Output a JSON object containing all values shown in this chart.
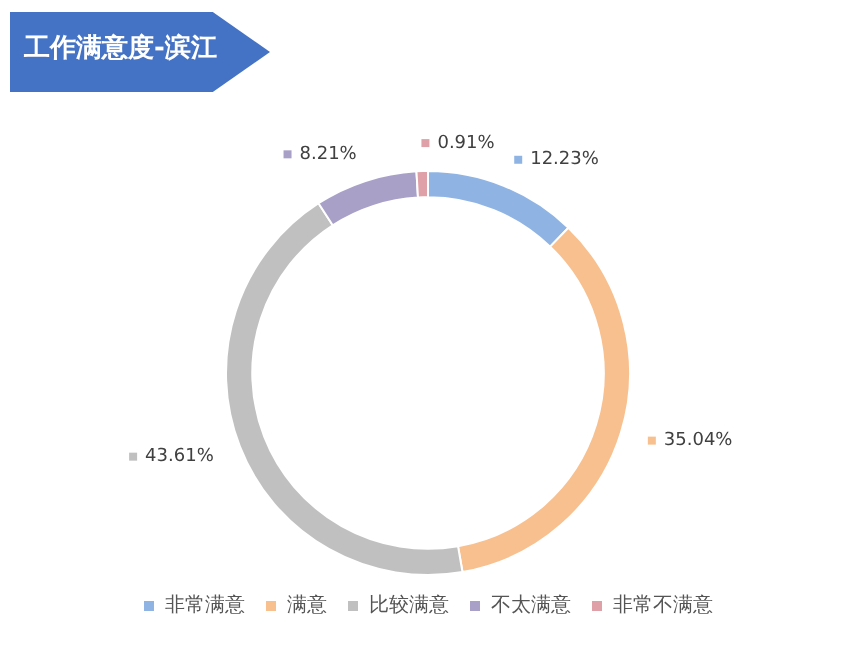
{
  "chart_data": {
    "type": "donut",
    "title": "工作满意度-滨江",
    "categories": [
      "非常满意",
      "满意",
      "比较满意",
      "不太满意",
      "非常不满意"
    ],
    "values": [
      12.23,
      35.04,
      43.61,
      8.21,
      0.91
    ],
    "colors": [
      "#8fb4e3",
      "#f8c08f",
      "#c0c0c0",
      "#a9a0c8",
      "#e0a0a8"
    ],
    "value_labels": [
      "12.23%",
      "35.04%",
      "43.61%",
      "8.21%",
      "0.91%"
    ],
    "legend": "bottom"
  }
}
